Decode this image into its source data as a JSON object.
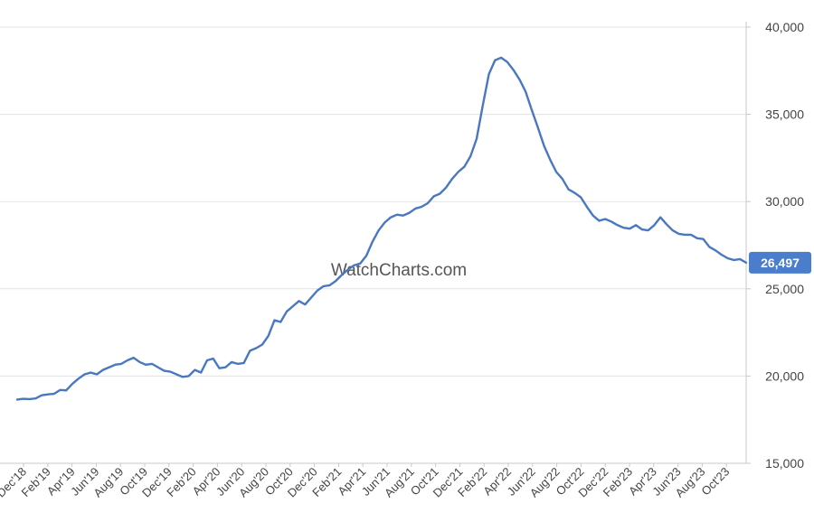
{
  "watermark": "WatchCharts.com",
  "colors": {
    "line": "#4a78c0",
    "badge": "#4a7dcc",
    "grid": "#e3e3e3",
    "axis": "#c8c8c8"
  },
  "chart_data": {
    "type": "line",
    "title": "",
    "xlabel": "",
    "ylabel": "",
    "ylim": [
      15000,
      40000
    ],
    "yticks": [
      15000,
      20000,
      25000,
      30000,
      35000,
      40000
    ],
    "ytick_labels": [
      "15,000",
      "20,000",
      "25,000",
      "30,000",
      "35,000",
      "40,000"
    ],
    "y_axis_position": "right",
    "grid": "horizontal",
    "xtick_labels": [
      "Dec'18",
      "Feb'19",
      "Apr'19",
      "Jun'19",
      "Aug'19",
      "Oct'19",
      "Dec'19",
      "Feb'20",
      "Apr'20",
      "Jun'20",
      "Aug'20",
      "Oct'20",
      "Dec'20",
      "Feb'21",
      "Apr'21",
      "Jun'21",
      "Aug'21",
      "Oct'21",
      "Dec'21",
      "Feb'22",
      "Apr'22",
      "Jun'22",
      "Aug'22",
      "Oct'22",
      "Dec'22",
      "Feb'23",
      "Apr'23",
      "Jun'23",
      "Aug'23",
      "Oct'23"
    ],
    "last_value_label": "26,497",
    "series": [
      {
        "values": [
          18650,
          18700,
          18680,
          18720,
          18900,
          18950,
          18980,
          19200,
          19180,
          19550,
          19850,
          20100,
          20200,
          20100,
          20350,
          20500,
          20650,
          20700,
          20900,
          21050,
          20800,
          20650,
          20700,
          20500,
          20300,
          20250,
          20100,
          19950,
          20000,
          20350,
          20200,
          20900,
          21000,
          20450,
          20500,
          20800,
          20700,
          20750,
          21450,
          21600,
          21800,
          22300,
          23200,
          23100,
          23700,
          24000,
          24300,
          24100,
          24500,
          24900,
          25150,
          25200,
          25450,
          25800,
          26100,
          26350,
          26450,
          26900,
          27700,
          28350,
          28800,
          29100,
          29250,
          29200,
          29350,
          29600,
          29700,
          29900,
          30300,
          30450,
          30800,
          31300,
          31700,
          32000,
          32600,
          33600,
          35500,
          37300,
          38100,
          38250,
          38000,
          37550,
          37000,
          36300,
          35250,
          34250,
          33200,
          32400,
          31700,
          31300,
          30700,
          30500,
          30250,
          29700,
          29200,
          28900,
          29000,
          28850,
          28650,
          28500,
          28450,
          28650,
          28400,
          28350,
          28650,
          29100,
          28700,
          28350,
          28150,
          28100,
          28100,
          27900,
          27850,
          27400,
          27200,
          26950,
          26750,
          26650,
          26700,
          26497
        ]
      }
    ]
  }
}
